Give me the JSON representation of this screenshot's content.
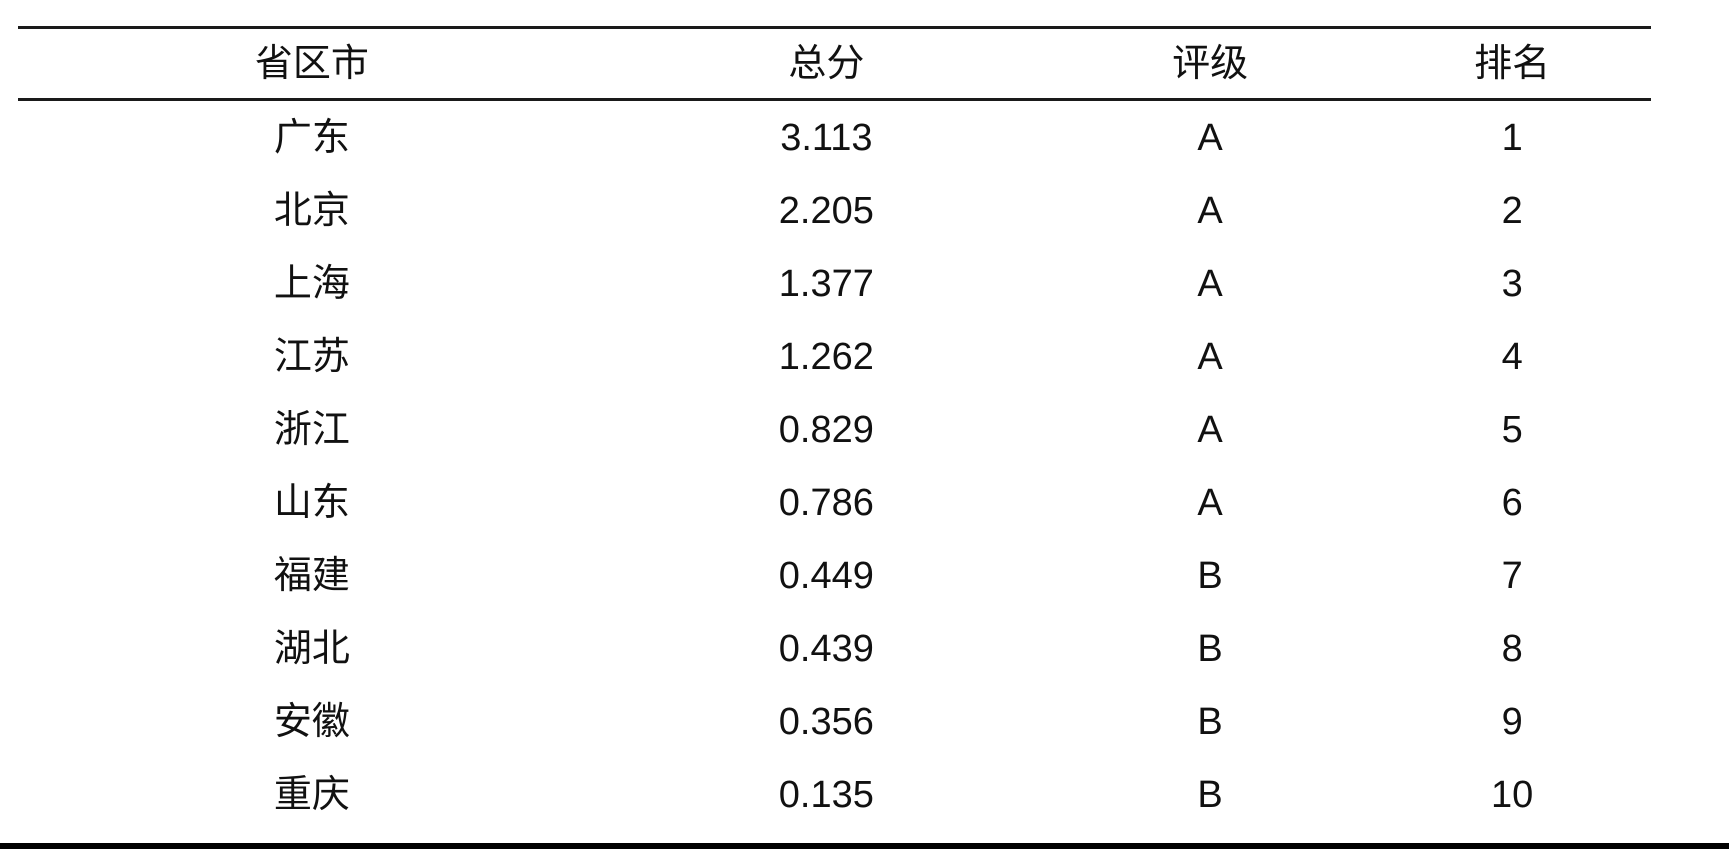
{
  "table": {
    "headers": [
      "省区市",
      "总分",
      "评级",
      "排名"
    ],
    "rows": [
      {
        "province": "广东",
        "score": "3.113",
        "rating": "A",
        "rank": "1"
      },
      {
        "province": "北京",
        "score": "2.205",
        "rating": "A",
        "rank": "2"
      },
      {
        "province": "上海",
        "score": "1.377",
        "rating": "A",
        "rank": "3"
      },
      {
        "province": "江苏",
        "score": "1.262",
        "rating": "A",
        "rank": "4"
      },
      {
        "province": "浙江",
        "score": "0.829",
        "rating": "A",
        "rank": "5"
      },
      {
        "province": "山东",
        "score": "0.786",
        "rating": "A",
        "rank": "6"
      },
      {
        "province": "福建",
        "score": "0.449",
        "rating": "B",
        "rank": "7"
      },
      {
        "province": "湖北",
        "score": "0.439",
        "rating": "B",
        "rank": "8"
      },
      {
        "province": "安徽",
        "score": "0.356",
        "rating": "B",
        "rank": "9"
      },
      {
        "province": "重庆",
        "score": "0.135",
        "rating": "B",
        "rank": "10"
      }
    ]
  },
  "colors": {
    "text": "#111111",
    "rule": "#1a1a1a",
    "bottom_bar": "#000000",
    "background": "#ffffff"
  }
}
